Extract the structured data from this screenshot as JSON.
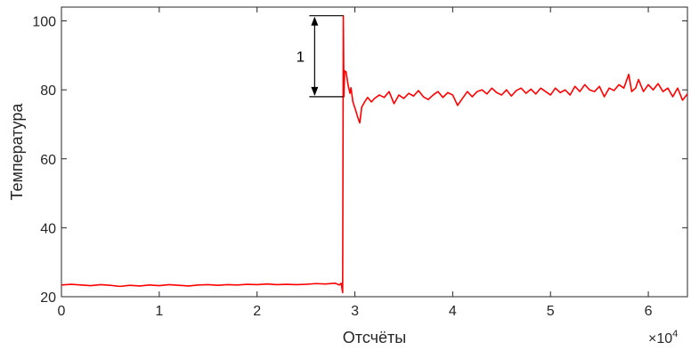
{
  "chart_data": {
    "type": "line",
    "title": "",
    "xlabel": "Отсчёты",
    "ylabel": "Температура",
    "xlim": [
      0,
      64000
    ],
    "ylim": [
      20,
      104
    ],
    "x_ticks": [
      0,
      10000,
      20000,
      30000,
      40000,
      50000,
      60000
    ],
    "x_tick_labels": [
      "0",
      "1",
      "2",
      "3",
      "4",
      "5",
      "6"
    ],
    "x_exponent_label": "×10",
    "x_exponent_power": "4",
    "y_ticks": [
      20,
      40,
      60,
      80,
      100
    ],
    "y_tick_labels": [
      "20",
      "40",
      "60",
      "80",
      "100"
    ],
    "grid": false,
    "series": [
      {
        "color": "#ff0000",
        "points": [
          [
            0,
            23.4
          ],
          [
            1000,
            23.6
          ],
          [
            2000,
            23.4
          ],
          [
            3000,
            23.2
          ],
          [
            4000,
            23.5
          ],
          [
            5000,
            23.3
          ],
          [
            6000,
            23.0
          ],
          [
            7000,
            23.3
          ],
          [
            8000,
            23.1
          ],
          [
            9000,
            23.4
          ],
          [
            10000,
            23.2
          ],
          [
            11000,
            23.5
          ],
          [
            12000,
            23.3
          ],
          [
            13000,
            23.1
          ],
          [
            14000,
            23.4
          ],
          [
            15000,
            23.5
          ],
          [
            16000,
            23.3
          ],
          [
            17000,
            23.5
          ],
          [
            18000,
            23.4
          ],
          [
            19000,
            23.6
          ],
          [
            20000,
            23.5
          ],
          [
            21000,
            23.7
          ],
          [
            22000,
            23.5
          ],
          [
            23000,
            23.6
          ],
          [
            24000,
            23.5
          ],
          [
            25000,
            23.6
          ],
          [
            26000,
            23.8
          ],
          [
            27000,
            23.7
          ],
          [
            28000,
            23.9
          ],
          [
            28400,
            23.4
          ],
          [
            28600,
            23.9
          ],
          [
            28750,
            21.2
          ],
          [
            28820,
            101.5
          ],
          [
            28880,
            78.0
          ],
          [
            28950,
            85.5
          ],
          [
            29100,
            85.2
          ],
          [
            29300,
            81.5
          ],
          [
            29500,
            79.0
          ],
          [
            29600,
            80.6
          ],
          [
            29800,
            76.5
          ],
          [
            30000,
            74.8
          ],
          [
            30300,
            72.0
          ],
          [
            30500,
            70.4
          ],
          [
            30700,
            75.0
          ],
          [
            31000,
            76.5
          ],
          [
            31300,
            77.8
          ],
          [
            31700,
            76.5
          ],
          [
            32000,
            77.5
          ],
          [
            32500,
            78.5
          ],
          [
            33000,
            77.8
          ],
          [
            33500,
            79.5
          ],
          [
            34000,
            76.0
          ],
          [
            34500,
            78.5
          ],
          [
            35000,
            77.5
          ],
          [
            35500,
            79.0
          ],
          [
            36000,
            78.2
          ],
          [
            36500,
            79.8
          ],
          [
            37000,
            78.0
          ],
          [
            37500,
            77.2
          ],
          [
            38000,
            78.5
          ],
          [
            38500,
            79.5
          ],
          [
            39000,
            77.8
          ],
          [
            39500,
            79.2
          ],
          [
            40000,
            78.5
          ],
          [
            40500,
            75.5
          ],
          [
            41000,
            77.5
          ],
          [
            41500,
            79.5
          ],
          [
            42000,
            78.0
          ],
          [
            42500,
            79.5
          ],
          [
            43000,
            80.0
          ],
          [
            43500,
            78.8
          ],
          [
            44000,
            80.5
          ],
          [
            44500,
            79.2
          ],
          [
            45000,
            78.5
          ],
          [
            45500,
            80.0
          ],
          [
            46000,
            78.2
          ],
          [
            46500,
            79.8
          ],
          [
            47000,
            80.5
          ],
          [
            47500,
            79.0
          ],
          [
            48000,
            80.2
          ],
          [
            48500,
            78.8
          ],
          [
            49000,
            80.5
          ],
          [
            49500,
            79.5
          ],
          [
            50000,
            78.5
          ],
          [
            50500,
            80.5
          ],
          [
            51000,
            79.2
          ],
          [
            51500,
            80.0
          ],
          [
            52000,
            78.5
          ],
          [
            52500,
            81.0
          ],
          [
            53000,
            79.5
          ],
          [
            53500,
            81.5
          ],
          [
            54000,
            80.0
          ],
          [
            54500,
            79.5
          ],
          [
            55000,
            81.0
          ],
          [
            55500,
            78.0
          ],
          [
            56000,
            80.5
          ],
          [
            56500,
            79.8
          ],
          [
            57000,
            81.5
          ],
          [
            57500,
            80.5
          ],
          [
            58000,
            84.5
          ],
          [
            58300,
            79.5
          ],
          [
            58700,
            80.5
          ],
          [
            59000,
            83.0
          ],
          [
            59500,
            79.5
          ],
          [
            60000,
            81.5
          ],
          [
            60500,
            80.0
          ],
          [
            61000,
            81.8
          ],
          [
            61500,
            79.5
          ],
          [
            62000,
            80.5
          ],
          [
            62500,
            78.0
          ],
          [
            63000,
            80.5
          ],
          [
            63500,
            77.0
          ],
          [
            64000,
            78.8
          ]
        ]
      }
    ],
    "annotations": [
      {
        "type": "double-arrow",
        "x": 28800,
        "y_top": 101.5,
        "y_bottom": 78.0,
        "label": "1"
      }
    ]
  }
}
